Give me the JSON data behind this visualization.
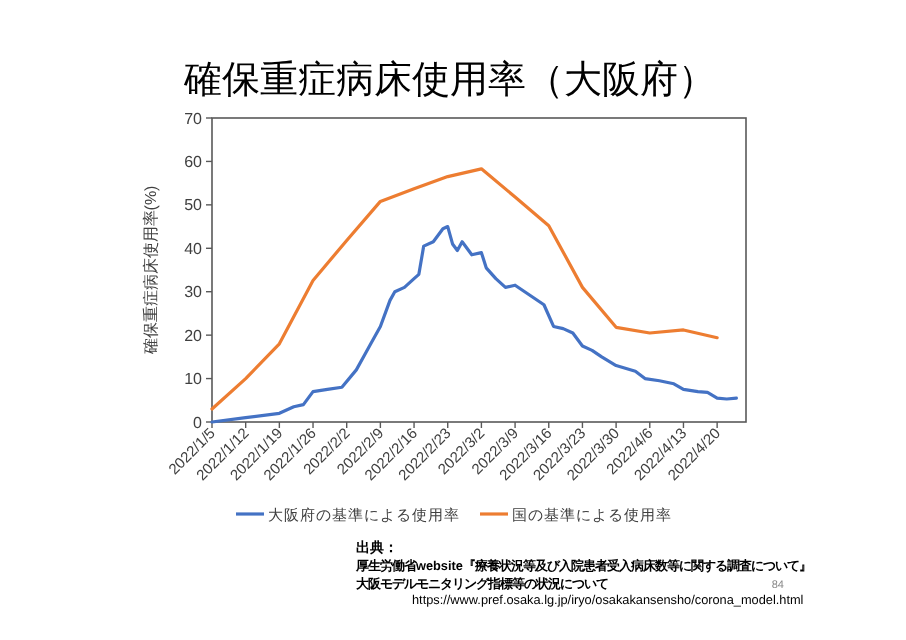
{
  "chart_data": {
    "type": "line",
    "title": "確保重症病床使用率（大阪府）",
    "ylabel": "確保重症病床使用率(%)",
    "xlim": [
      "2022-01-05",
      "2022-04-26"
    ],
    "xticks": [
      {
        "value": "2022-01-05",
        "label": "2022/1/5"
      },
      {
        "value": "2022-01-12",
        "label": "2022/1/12"
      },
      {
        "value": "2022-01-19",
        "label": "2022/1/19"
      },
      {
        "value": "2022-01-26",
        "label": "2022/1/26"
      },
      {
        "value": "2022-02-02",
        "label": "2022/2/2"
      },
      {
        "value": "2022-02-09",
        "label": "2022/2/9"
      },
      {
        "value": "2022-02-16",
        "label": "2022/2/16"
      },
      {
        "value": "2022-02-23",
        "label": "2022/2/23"
      },
      {
        "value": "2022-03-02",
        "label": "2022/3/2"
      },
      {
        "value": "2022-03-09",
        "label": "2022/3/9"
      },
      {
        "value": "2022-03-16",
        "label": "2022/3/16"
      },
      {
        "value": "2022-03-23",
        "label": "2022/3/23"
      },
      {
        "value": "2022-03-30",
        "label": "2022/3/30"
      },
      {
        "value": "2022-04-06",
        "label": "2022/4/6"
      },
      {
        "value": "2022-04-13",
        "label": "2022/4/13"
      },
      {
        "value": "2022-04-20",
        "label": "2022/4/20"
      }
    ],
    "ylim": [
      0,
      70
    ],
    "yticks": [
      0,
      10,
      20,
      30,
      40,
      50,
      60,
      70
    ],
    "grid": false,
    "legend": "bottom",
    "marker": "none",
    "line_style": "solid",
    "series": [
      {
        "name": "大阪府の基準による使用率",
        "color": "#4472c4",
        "x": [
          "2022-01-05",
          "2022-01-12",
          "2022-01-19",
          "2022-01-22",
          "2022-01-24",
          "2022-01-26",
          "2022-01-29",
          "2022-02-01",
          "2022-02-04",
          "2022-02-06",
          "2022-02-07",
          "2022-02-09",
          "2022-02-11",
          "2022-02-12",
          "2022-02-14",
          "2022-02-16",
          "2022-02-17",
          "2022-02-18",
          "2022-02-20",
          "2022-02-22",
          "2022-02-23",
          "2022-02-24",
          "2022-02-25",
          "2022-02-26",
          "2022-02-28",
          "2022-03-02",
          "2022-03-03",
          "2022-03-05",
          "2022-03-07",
          "2022-03-09",
          "2022-03-11",
          "2022-03-13",
          "2022-03-15",
          "2022-03-17",
          "2022-03-19",
          "2022-03-21",
          "2022-03-23",
          "2022-03-25",
          "2022-03-27",
          "2022-03-30",
          "2022-04-03",
          "2022-04-05",
          "2022-04-08",
          "2022-04-11",
          "2022-04-13",
          "2022-04-16",
          "2022-04-18",
          "2022-04-20",
          "2022-04-22",
          "2022-04-24"
        ],
        "values": [
          0,
          1,
          2,
          3.5,
          4,
          7,
          7.5,
          8,
          12,
          16,
          18,
          22,
          28,
          30,
          31,
          33,
          34,
          40.5,
          41.5,
          44.5,
          45,
          41,
          39.5,
          41.5,
          38.5,
          39,
          35.5,
          33,
          31,
          31.5,
          30,
          28.5,
          27,
          22,
          21.5,
          20.5,
          17.5,
          16.5,
          15,
          13,
          11.7,
          10,
          9.5,
          8.8,
          7.5,
          7,
          6.8,
          5.5,
          5.3,
          5.5
        ]
      },
      {
        "name": "国の基準による使用率",
        "color": "#ed7d31",
        "x": [
          "2022-01-05",
          "2022-01-12",
          "2022-01-19",
          "2022-01-26",
          "2022-02-02",
          "2022-02-09",
          "2022-02-16",
          "2022-02-23",
          "2022-03-02",
          "2022-03-09",
          "2022-03-16",
          "2022-03-23",
          "2022-03-30",
          "2022-04-06",
          "2022-04-13",
          "2022-04-20"
        ],
        "values": [
          3,
          10,
          18,
          32.6,
          41.8,
          50.8,
          53.7,
          56.5,
          58.3,
          51.8,
          45.2,
          31,
          21.8,
          20.5,
          21.2,
          19.4
        ]
      }
    ],
    "annotations": [
      "出典：",
      "厚生労働省website『療養状況等及び入院患者受入病床数等に関する調査について』",
      "大阪モデルモニタリング指標等の状況について",
      "https://www.pref.osaka.lg.jp/iryo/osakakansensho/corona_model.html",
      "84"
    ]
  }
}
